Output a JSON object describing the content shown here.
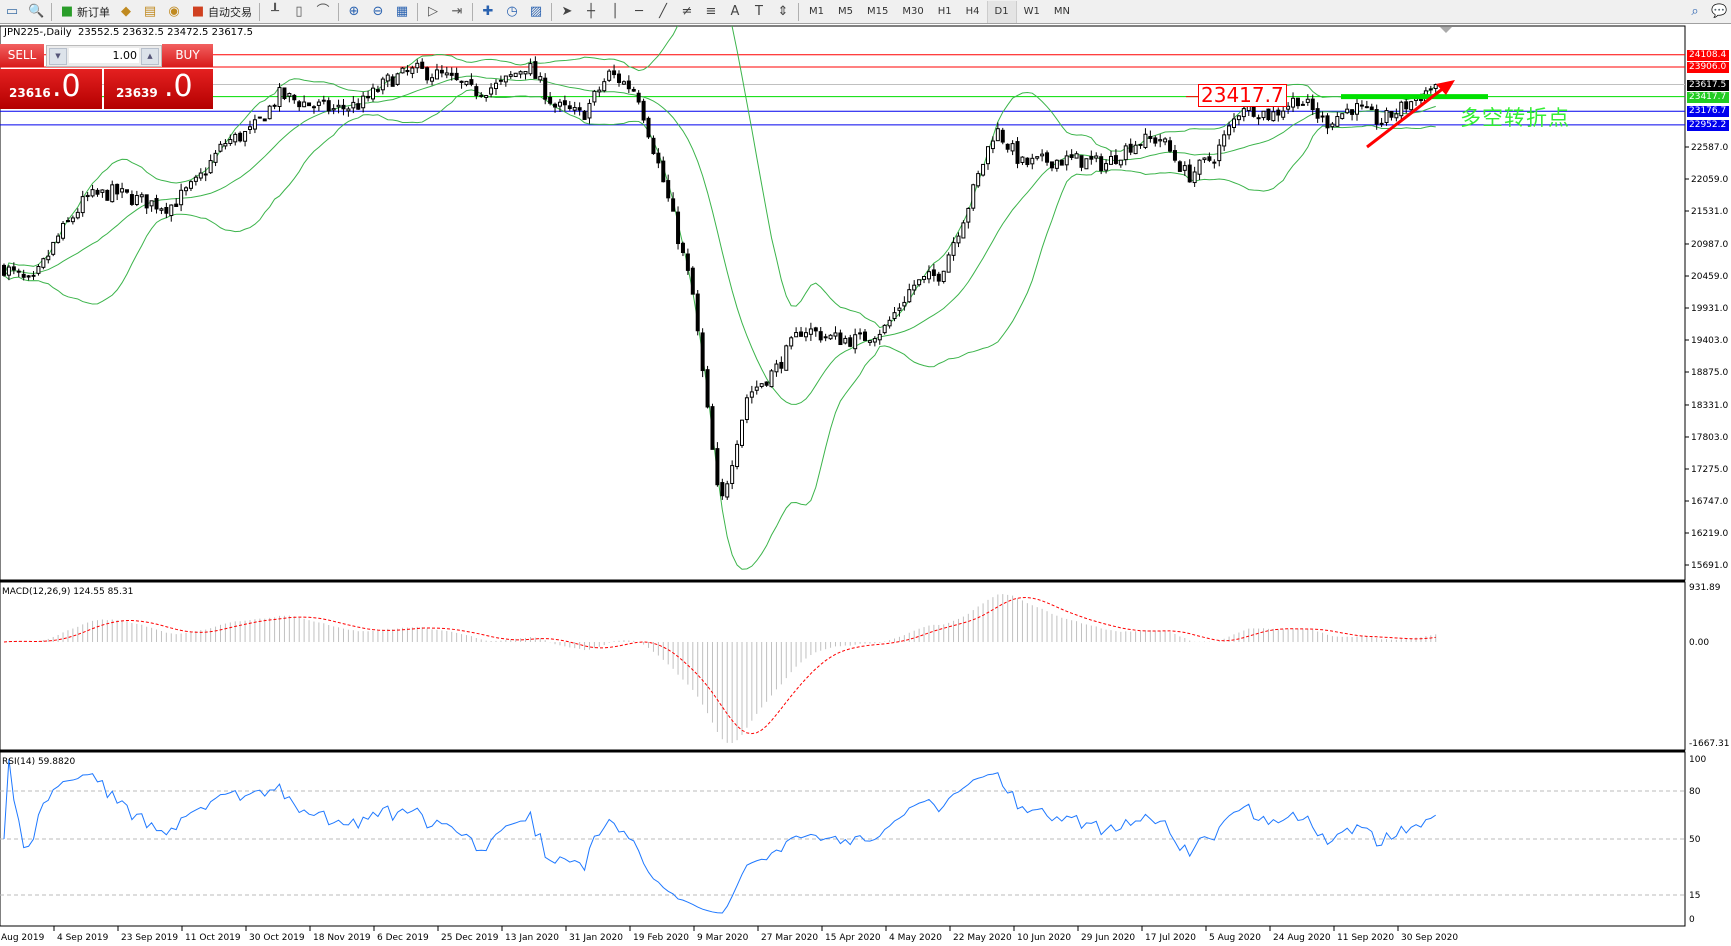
{
  "toolbar": {
    "left_icons": [
      "window-icon",
      "zoom-window-icon"
    ],
    "new_order": "新订单",
    "mid_icons": [
      "marketwatch-icon",
      "navigator-icon",
      "signals-icon"
    ],
    "auto_trading": "自动交易",
    "chart_icons": [
      "bar-chart-icon",
      "candlestick-icon",
      "line-chart-icon",
      "zoom-in-icon",
      "zoom-out-icon",
      "tile-windows-icon",
      "auto-scroll-icon",
      "chart-shift-icon",
      "indicators-icon",
      "periods-icon",
      "templates-icon"
    ],
    "draw_icons": [
      "cursor-icon",
      "crosshair-icon",
      "vertical-line-icon",
      "horizontal-line-icon",
      "trendline-icon",
      "equidistant-channel-icon",
      "fibonacci-icon",
      "text-icon",
      "text-label-icon",
      "arrows-icon"
    ],
    "timeframes": [
      "M1",
      "M5",
      "M15",
      "M30",
      "H1",
      "H4",
      "D1",
      "W1",
      "MN"
    ],
    "active_timeframe": "D1",
    "right_icons": [
      "search-icon",
      "chat-icon"
    ]
  },
  "header": {
    "symbol": "JPN225-,Daily",
    "ohlc": "23552.5 23632.5 23472.5 23617.5"
  },
  "trade_panel": {
    "sell_label": "SELL",
    "buy_label": "BUY",
    "lot": "1.00",
    "sell_price_main": "23616",
    "sell_price_pt": "0",
    "buy_price_main": "23639",
    "buy_price_pt": "0"
  },
  "annotations": {
    "price_box": "23417.7",
    "text": "多空转折点"
  },
  "colors": {
    "bands": "#3cb44b",
    "resistance": "#ff0000",
    "pivot": "#00e000",
    "support": "#0000e0",
    "rsi": "#1e78ff",
    "macd_hist": "#c0c0c0",
    "macd_signal": "#ff0000",
    "arrow": "#ff0000"
  },
  "chart_data": {
    "type": "candlestick",
    "symbol": "JPN225-",
    "timeframe": "Daily",
    "last_bar": {
      "open": 23552.5,
      "high": 23632.5,
      "low": 23472.5,
      "close": 23617.5
    },
    "close_path": [
      20600,
      20300,
      21130,
      21750,
      21840,
      21700,
      21600,
      22000,
      22650,
      22850,
      23440,
      23300,
      23200,
      23300,
      23700,
      23850,
      23750,
      23500,
      23600,
      23950,
      23260,
      23100,
      23800,
      23500,
      21930,
      20200,
      16600,
      18500,
      18900,
      19600,
      19440,
      19400,
      19600,
      20300,
      20500,
      21600,
      22900,
      22300,
      22370,
      22370,
      22300,
      22650,
      22730,
      22100,
      22460,
      23300,
      23100,
      23400,
      22990,
      23250,
      23000,
      23300,
      23617.5
    ],
    "price_axis": [
      "22587.0",
      "22059.0",
      "21531.0",
      "20987.0",
      "20459.0",
      "19931.0",
      "19403.0",
      "18875.0",
      "18331.0",
      "17803.0",
      "17275.0",
      "16747.0",
      "16219.0",
      "15691.0"
    ],
    "price_range": [
      15443,
      24565
    ],
    "horizontal_lines": [
      {
        "price": 24108.4,
        "label": "24108.4",
        "color": "#ff0000"
      },
      {
        "price": 23906.0,
        "label": "23906.0",
        "color": "#ff0000"
      },
      {
        "price": 23617.5,
        "label": "23617.5",
        "color": "#000000",
        "line": "#c0c0c0"
      },
      {
        "price": 23417.7,
        "label": "23417.7",
        "color": "#22cc22",
        "line": "#00dd00"
      },
      {
        "price": 23176.7,
        "label": "23176.7",
        "color": "#0000ee"
      },
      {
        "price": 22952.2,
        "label": "22952.2",
        "color": "#0000ee"
      }
    ],
    "indicators": {
      "bollinger": {
        "period": 20,
        "deviation": 2
      },
      "macd": {
        "label": "MACD(12,26,9) 124.55 85.31",
        "axis": [
          "931.89",
          "0.00",
          "-1667.31"
        ],
        "range": [
          -1667.31,
          931.89
        ]
      },
      "rsi": {
        "label": "RSI(14) 59.8820",
        "axis": [
          "100",
          "80",
          "50",
          "15",
          "0"
        ],
        "levels": [
          80,
          50,
          15
        ],
        "range": [
          0,
          100
        ]
      }
    },
    "x_labels": [
      "Aug 2019",
      "4 Sep 2019",
      "23 Sep 2019",
      "11 Oct 2019",
      "30 Oct 2019",
      "18 Nov 2019",
      "6 Dec 2019",
      "25 Dec 2019",
      "13 Jan 2020",
      "31 Jan 2020",
      "19 Feb 2020",
      "9 Mar 2020",
      "27 Mar 2020",
      "15 Apr 2020",
      "4 May 2020",
      "22 May 2020",
      "10 Jun 2020",
      "29 Jun 2020",
      "17 Jul 2020",
      "5 Aug 2020",
      "24 Aug 2020",
      "11 Sep 2020",
      "30 Sep 2020"
    ]
  }
}
